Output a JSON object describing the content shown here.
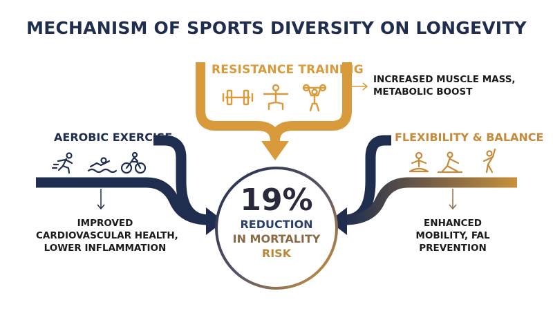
{
  "title": "MECHANISM OF SPORTS DIVERSITY ON LONGEVITY",
  "colors": {
    "navy": "#1f2d4f",
    "gold": "#d89a3a"
  },
  "branches": {
    "resistance": {
      "label": "RESISTANCE TRAINING",
      "icons": [
        "dumbbell-icon",
        "squat-figure-icon",
        "weightlifter-icon"
      ],
      "effect_lines": [
        "INCREASED MUSCLE MASS,",
        "METABOLIC BOOST"
      ]
    },
    "aerobic": {
      "label": "AEROBIC EXERCISE",
      "icons": [
        "runner-icon",
        "swimmer-icon",
        "cyclist-icon"
      ],
      "effect_lines": [
        "IMPROVED",
        "CARDIOVASCULAR HEALTH,",
        "LOWER INFLAMMATION"
      ]
    },
    "flexibility": {
      "label": "FLEXIBILITY & BALANCE",
      "icons": [
        "meditation-icon",
        "yoga-pose-icon",
        "stretch-icon"
      ],
      "effect_lines": [
        "ENHANCED",
        "MOBILITY, FAL",
        "PREVENTION"
      ]
    }
  },
  "center": {
    "percent": "19%",
    "lines": [
      "REDUCTION",
      "IN MORTALITY",
      "RISK"
    ]
  }
}
